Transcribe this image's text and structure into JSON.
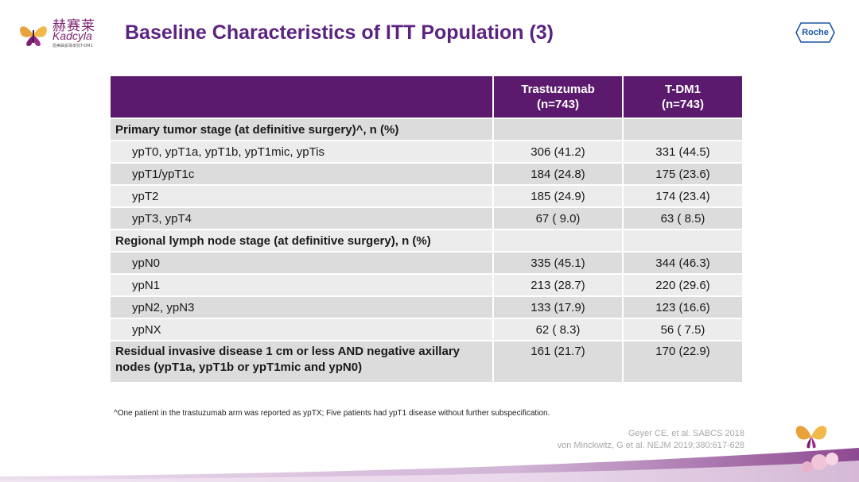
{
  "logo": {
    "name_cn": "赫赛莱",
    "name_en": "Kadcyla",
    "tagline": "恩美曲妥珠单抗T-DM1"
  },
  "title": "Baseline Characteristics of ITT Population (3)",
  "roche_label": "Roche",
  "table": {
    "headers": [
      {
        "line1": "",
        "line2": ""
      },
      {
        "line1": "Trastuzumab",
        "line2": "(n=743)"
      },
      {
        "line1": "T-DM1",
        "line2": "(n=743)"
      }
    ],
    "rows": [
      {
        "type": "section",
        "label": "Primary tumor stage (at definitive surgery)^, n (%)",
        "trastuzumab": "",
        "tdm1": ""
      },
      {
        "type": "item",
        "label": "ypT0, ypT1a, ypT1b, ypT1mic, ypTis",
        "trastuzumab": "306 (41.2)",
        "tdm1": "331 (44.5)"
      },
      {
        "type": "item",
        "label": "ypT1/ypT1c",
        "trastuzumab": "184 (24.8)",
        "tdm1": "175 (23.6)"
      },
      {
        "type": "item",
        "label": "ypT2",
        "trastuzumab": "185 (24.9)",
        "tdm1": "174 (23.4)"
      },
      {
        "type": "item",
        "label": "ypT3, ypT4",
        "trastuzumab": "67 ( 9.0)",
        "tdm1": "63 ( 8.5)"
      },
      {
        "type": "section",
        "label": "Regional lymph node stage (at definitive surgery), n (%)",
        "trastuzumab": "",
        "tdm1": ""
      },
      {
        "type": "item",
        "label": "ypN0",
        "trastuzumab": "335 (45.1)",
        "tdm1": "344 (46.3)"
      },
      {
        "type": "item",
        "label": "ypN1",
        "trastuzumab": "213 (28.7)",
        "tdm1": "220 (29.6)"
      },
      {
        "type": "item",
        "label": "ypN2, ypN3",
        "trastuzumab": "133 (17.9)",
        "tdm1": "123 (16.6)"
      },
      {
        "type": "item",
        "label": "ypNX",
        "trastuzumab": "62 ( 8.3)",
        "tdm1": "56 ( 7.5)"
      },
      {
        "type": "section-tall",
        "label": "Residual invasive disease 1 cm or less AND negative axillary nodes (ypT1a, ypT1b or ypT1mic and ypN0)",
        "trastuzumab": "161 (21.7)",
        "tdm1": "170 (22.9)"
      }
    ]
  },
  "footnote": "^One patient in the trastuzumab arm was reported as ypTX; Five patients had ypT1 disease without further subspecification.",
  "references": [
    "Geyer CE, et al.  SABCS 2018",
    "von Minckwitz, G et al. NEJM 2019;380:617-628"
  ]
}
